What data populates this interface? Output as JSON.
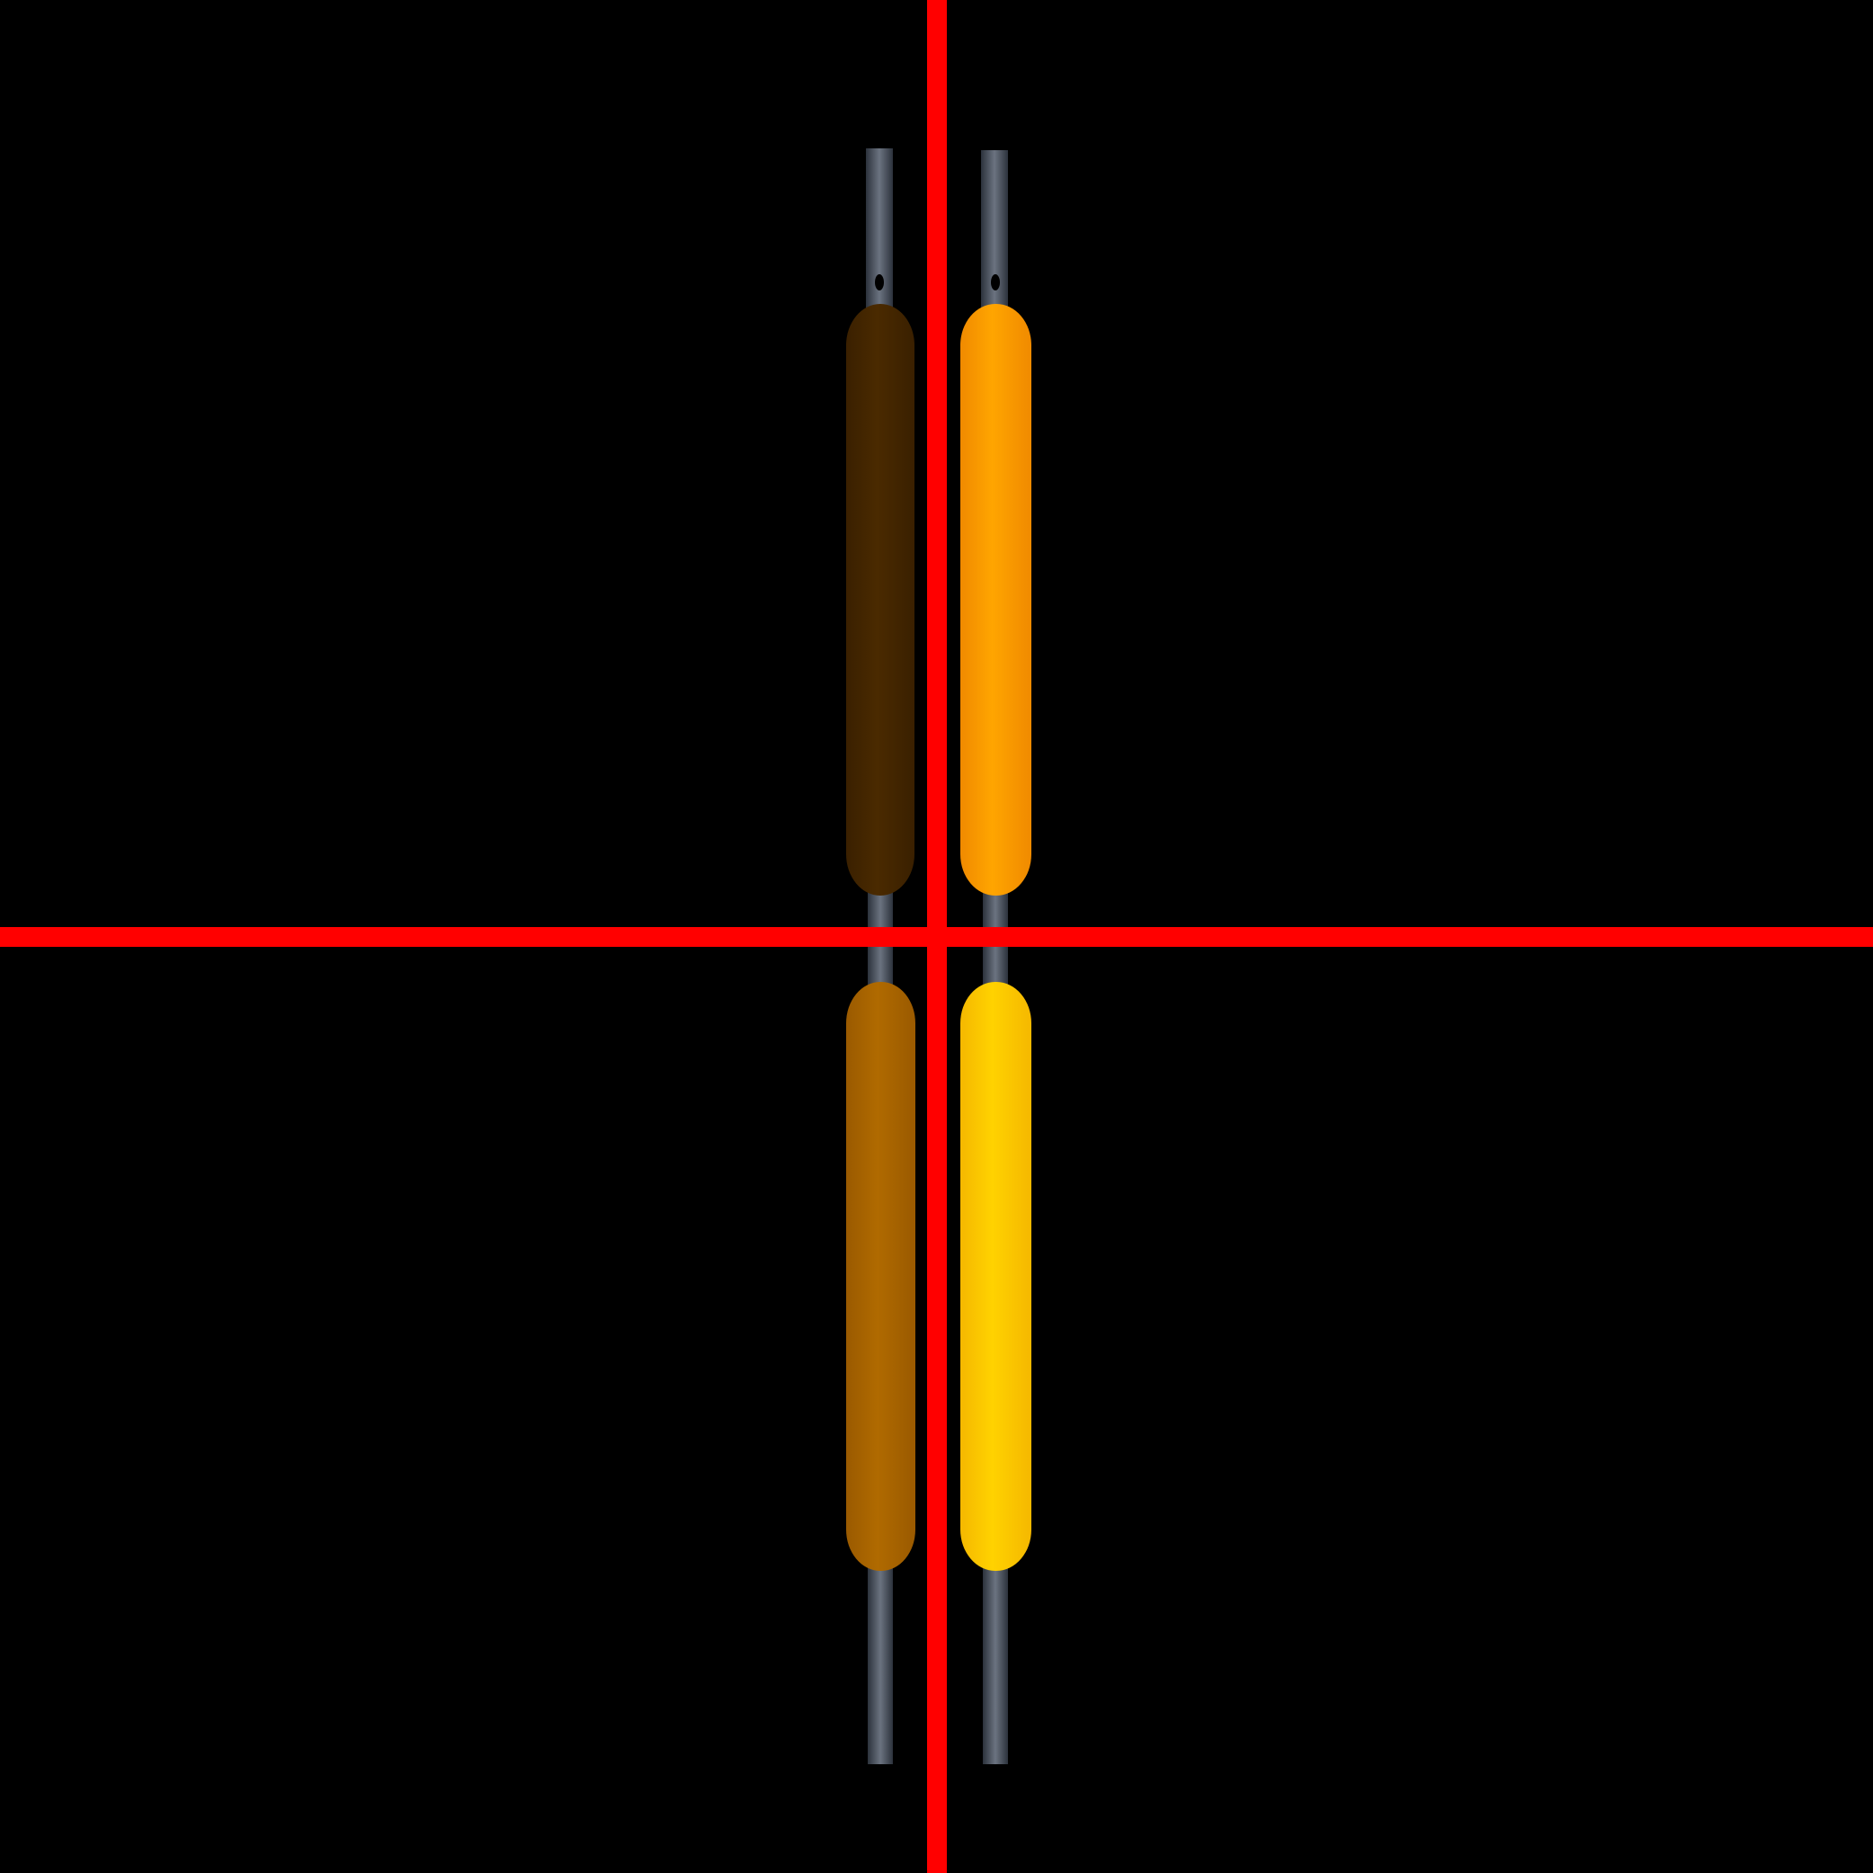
{
  "scene": {
    "background_color": "#000000",
    "divider_color": "#ff0000",
    "strip_metal_color": "#3f4653",
    "strip_metal_highlight": "#6b7380",
    "quadrants": [
      {
        "position": "top-left",
        "coating_color": "#4a2a00",
        "coating_edge": "#3a2000"
      },
      {
        "position": "top-right",
        "coating_color": "#ffa500",
        "coating_edge": "#f08a00"
      },
      {
        "position": "bottom-left",
        "coating_color": "#b06a00",
        "coating_edge": "#9a5a00"
      },
      {
        "position": "bottom-right",
        "coating_color": "#ffd200",
        "coating_edge": "#f5b800"
      }
    ]
  }
}
